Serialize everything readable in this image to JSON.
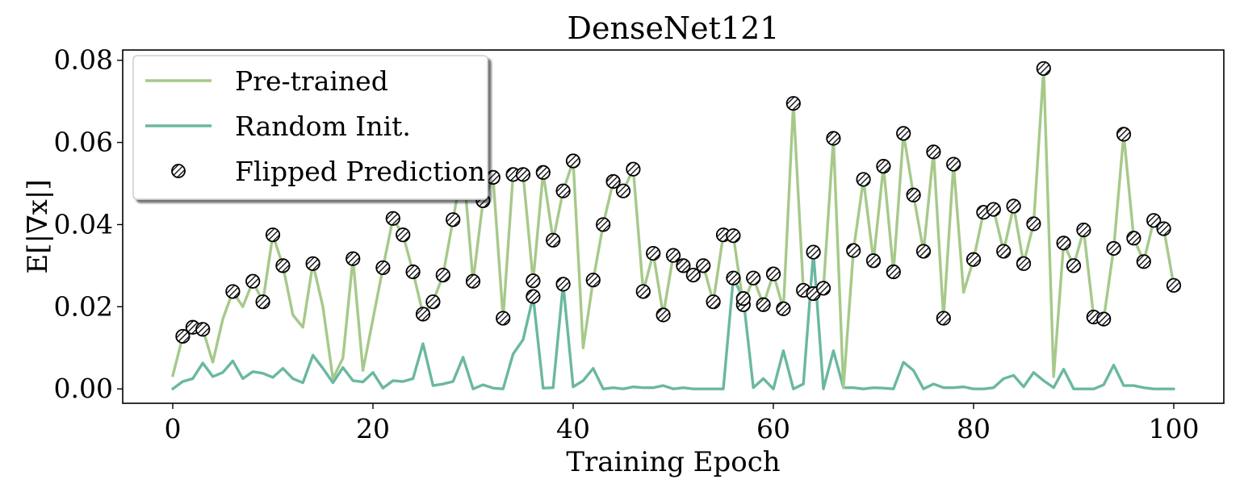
{
  "chart_data": {
    "type": "line",
    "title": "DenseNet121",
    "xlabel": "Training Epoch",
    "ylabel": "E[|∇x|]",
    "xlim": [
      -5,
      105
    ],
    "ylim": [
      -0.0035,
      0.0825
    ],
    "xticks": [
      0,
      20,
      40,
      60,
      80,
      100
    ],
    "xtick_labels": [
      "0",
      "20",
      "40",
      "60",
      "80",
      "100"
    ],
    "yticks": [
      0.0,
      0.02,
      0.04,
      0.06,
      0.08
    ],
    "ytick_labels": [
      "0.00",
      "0.02",
      "0.04",
      "0.06",
      "0.08"
    ],
    "legend": {
      "position": "top-left",
      "entries": [
        "Pre-trained",
        "Random Init.",
        "Flipped Prediction"
      ]
    },
    "colors": {
      "pretrained": "#a6c98a",
      "random": "#6ab8a0",
      "marker_edge": "#000000"
    },
    "x": [
      0,
      1,
      2,
      3,
      4,
      5,
      6,
      7,
      8,
      9,
      10,
      11,
      12,
      13,
      14,
      15,
      16,
      17,
      18,
      19,
      20,
      21,
      22,
      23,
      24,
      25,
      26,
      27,
      28,
      29,
      30,
      31,
      32,
      33,
      34,
      35,
      36,
      37,
      38,
      39,
      40,
      41,
      42,
      43,
      44,
      45,
      46,
      47,
      48,
      49,
      50,
      51,
      52,
      53,
      54,
      55,
      56,
      57,
      58,
      59,
      60,
      61,
      62,
      63,
      64,
      65,
      66,
      67,
      68,
      69,
      70,
      71,
      72,
      73,
      74,
      75,
      76,
      77,
      78,
      79,
      80,
      81,
      82,
      83,
      84,
      85,
      86,
      87,
      88,
      89,
      90,
      91,
      92,
      93,
      94,
      95,
      96,
      97,
      98,
      99,
      100
    ],
    "series": [
      {
        "name": "Pre-trained",
        "values": [
          0.0032,
          0.0128,
          0.015,
          0.0145,
          0.0065,
          0.017,
          0.0237,
          0.02,
          0.0262,
          0.0212,
          0.0375,
          0.03,
          0.018,
          0.015,
          0.0305,
          0.02,
          0.0025,
          0.0075,
          0.0317,
          0.0045,
          0.017,
          0.0295,
          0.0415,
          0.0375,
          0.0285,
          0.0182,
          0.0212,
          0.0277,
          0.0412,
          0.055,
          0.0262,
          0.0458,
          0.0515,
          0.0172,
          0.0522,
          0.0522,
          0.0263,
          0.0527,
          0.0362,
          0.0482,
          0.0555,
          0.01,
          0.0265,
          0.04,
          0.0505,
          0.0482,
          0.0535,
          0.0237,
          0.033,
          0.018,
          0.0325,
          0.03,
          0.0277,
          0.03,
          0.0212,
          0.0375,
          0.0373,
          0.0205,
          0.027,
          0.0205,
          0.028,
          0.0195,
          0.0695,
          0.024,
          0.0232,
          0.0245,
          0.061,
          0.0003,
          0.0337,
          0.051,
          0.0312,
          0.0542,
          0.0285,
          0.0622,
          0.0472,
          0.0335,
          0.0577,
          0.0172,
          0.0547,
          0.0235,
          0.0315,
          0.043,
          0.0437,
          0.0335,
          0.0445,
          0.0305,
          0.0402,
          0.078,
          0.003,
          0.0355,
          0.03,
          0.0387,
          0.0175,
          0.017,
          0.0342,
          0.062,
          0.0367,
          0.031,
          0.041,
          0.039,
          0.0252
        ]
      },
      {
        "name": "Random Init.",
        "values": [
          0.0,
          0.0018,
          0.0025,
          0.0063,
          0.003,
          0.004,
          0.0068,
          0.0025,
          0.0042,
          0.0038,
          0.0028,
          0.005,
          0.0025,
          0.0015,
          0.0082,
          0.005,
          0.0015,
          0.0052,
          0.002,
          0.0017,
          0.004,
          0.0002,
          0.002,
          0.0018,
          0.0025,
          0.011,
          0.0008,
          0.0012,
          0.0018,
          0.0077,
          0.0,
          0.001,
          0.0002,
          0.0,
          0.0085,
          0.012,
          0.0225,
          0.0002,
          0.0003,
          0.0255,
          0.0005,
          0.002,
          0.005,
          0.0,
          0.0003,
          0.0,
          0.0005,
          0.0003,
          0.0003,
          0.0008,
          0.0,
          0.0003,
          0.0,
          0.0,
          0.0,
          0.0,
          0.027,
          0.022,
          0.0003,
          0.0025,
          0.0,
          0.0093,
          0.0,
          0.0012,
          0.0333,
          0.0,
          0.0093,
          0.0003,
          0.0003,
          0.0,
          0.0003,
          0.0002,
          0.0,
          0.0065,
          0.0045,
          0.0,
          0.0012,
          0.0003,
          0.0003,
          0.0005,
          0.0,
          0.0,
          0.0003,
          0.0025,
          0.0033,
          0.0005,
          0.004,
          0.002,
          0.0003,
          0.0048,
          0.0,
          0.0,
          0.0,
          0.001,
          0.0058,
          0.0008,
          0.0008,
          0.0003,
          0.0,
          0.0,
          0.0
        ]
      }
    ],
    "flipped_prediction_epochs": [
      1,
      2,
      3,
      6,
      8,
      9,
      10,
      11,
      14,
      18,
      21,
      22,
      23,
      24,
      25,
      26,
      27,
      28,
      30,
      31,
      32,
      33,
      34,
      35,
      36,
      37,
      38,
      39,
      40,
      42,
      43,
      44,
      45,
      46,
      47,
      48,
      49,
      50,
      51,
      52,
      53,
      54,
      55,
      56,
      57,
      58,
      59,
      60,
      61,
      62,
      63,
      64,
      65,
      66,
      68,
      69,
      70,
      71,
      72,
      73,
      74,
      75,
      76,
      77,
      78,
      80,
      81,
      82,
      83,
      84,
      85,
      86,
      87,
      89,
      90,
      91,
      92,
      93,
      94,
      95,
      96,
      97,
      98,
      99,
      100
    ],
    "flipped_prediction_random_epochs": [
      36,
      39,
      56,
      57,
      64
    ]
  }
}
